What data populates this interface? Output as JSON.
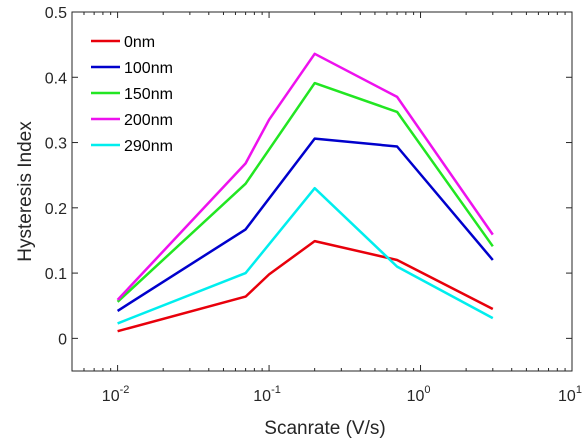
{
  "chart_data": {
    "type": "line",
    "xlabel": "Scanrate (V/s)",
    "ylabel": "Hysteresis Index",
    "xscale": "log",
    "xlim": [
      0.005,
      10
    ],
    "ylim": [
      -0.05,
      0.5
    ],
    "x_ticks": [
      {
        "value": 0.01,
        "base": "10",
        "exp": "-2"
      },
      {
        "value": 0.1,
        "base": "10",
        "exp": "-1"
      },
      {
        "value": 1,
        "base": "10",
        "exp": "0"
      },
      {
        "value": 10,
        "base": "10",
        "exp": "1"
      }
    ],
    "y_ticks": [
      {
        "value": 0,
        "label": "0"
      },
      {
        "value": 0.1,
        "label": "0.1"
      },
      {
        "value": 0.2,
        "label": "0.2"
      },
      {
        "value": 0.3,
        "label": "0.3"
      },
      {
        "value": 0.4,
        "label": "0.4"
      },
      {
        "value": 0.5,
        "label": "0.5"
      }
    ],
    "grid": false,
    "legend_position": "top-left",
    "series": [
      {
        "name": "0nm",
        "color": "#e8000b",
        "x": [
          0.01,
          0.07,
          0.1,
          0.2,
          0.7,
          3
        ],
        "y": [
          0.011,
          0.064,
          0.098,
          0.149,
          0.12,
          0.045
        ]
      },
      {
        "name": "100nm",
        "color": "#0000cc",
        "x": [
          0.01,
          0.07,
          0.2,
          0.7,
          3
        ],
        "y": [
          0.042,
          0.167,
          0.306,
          0.294,
          0.12
        ]
      },
      {
        "name": "150nm",
        "color": "#22e622",
        "x": [
          0.01,
          0.07,
          0.2,
          0.7,
          3
        ],
        "y": [
          0.056,
          0.237,
          0.391,
          0.347,
          0.141
        ]
      },
      {
        "name": "200nm",
        "color": "#ee11ee",
        "x": [
          0.01,
          0.07,
          0.1,
          0.2,
          0.7,
          3
        ],
        "y": [
          0.059,
          0.268,
          0.335,
          0.436,
          0.37,
          0.159
        ]
      },
      {
        "name": "290nm",
        "color": "#00eeee",
        "x": [
          0.01,
          0.07,
          0.2,
          0.7,
          3
        ],
        "y": [
          0.023,
          0.1,
          0.23,
          0.11,
          0.031
        ]
      }
    ]
  }
}
